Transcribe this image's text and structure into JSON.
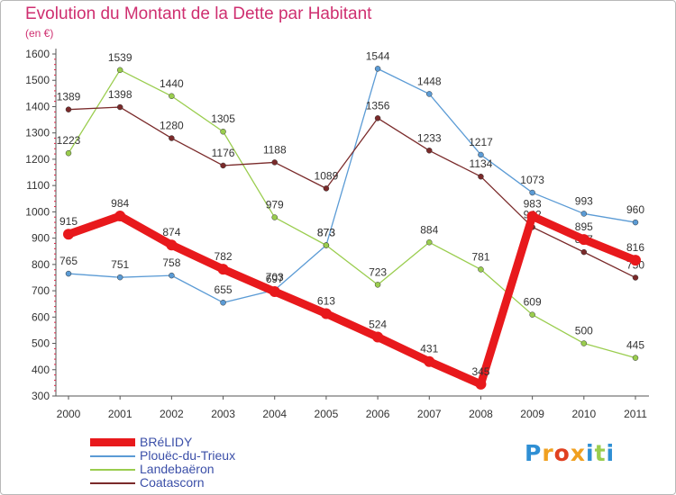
{
  "chart_data": {
    "type": "line",
    "title": "Evolution du Montant de la Dette par Habitant",
    "subtitle": "(en €)",
    "x": [
      "2000",
      "2001",
      "2002",
      "2003",
      "2004",
      "2005",
      "2006",
      "2007",
      "2008",
      "2009",
      "2010",
      "2011"
    ],
    "ylim": [
      300,
      1600
    ],
    "yticks": [
      300,
      400,
      500,
      600,
      700,
      800,
      900,
      1000,
      1100,
      1200,
      1300,
      1400,
      1500,
      1600
    ],
    "grid": false,
    "legend_position": "bottom-left",
    "series": [
      {
        "name": "BRéLIDY",
        "color": "#e8191c",
        "values": [
          915,
          984,
          874,
          782,
          697,
          613,
          524,
          431,
          345,
          983,
          895,
          816
        ],
        "labels": [
          "915",
          "984",
          "874",
          "782",
          "697",
          "613",
          "524",
          "431",
          "345",
          "983",
          "895",
          "816"
        ]
      },
      {
        "name": "Plouëc-du-Trieux",
        "color": "#5b9bd5",
        "values": [
          765,
          751,
          758,
          655,
          703,
          873,
          1544,
          1448,
          1217,
          1073,
          993,
          960
        ],
        "labels": [
          "765",
          "751",
          "758",
          "655",
          "703",
          "873",
          "1544",
          "1448",
          "1217",
          "1073",
          "993",
          "960"
        ]
      },
      {
        "name": "Landebaëron",
        "color": "#9acd4e",
        "values": [
          1223,
          1539,
          1440,
          1305,
          979,
          873,
          723,
          884,
          781,
          609,
          500,
          445
        ],
        "labels": [
          "1223",
          "1539",
          "1440",
          "1305",
          "979",
          "873",
          "723",
          "884",
          "781",
          "609",
          "500",
          "445"
        ]
      },
      {
        "name": "Coatascorn",
        "color": "#7a2a2a",
        "values": [
          1389,
          1398,
          1280,
          1176,
          1188,
          1089,
          1356,
          1233,
          1134,
          942,
          847,
          750
        ],
        "labels": [
          "1389",
          "1398",
          "1280",
          "1176",
          "1188",
          "1089",
          "1356",
          "1233",
          "1134",
          "942",
          "847",
          "750"
        ]
      }
    ]
  },
  "logo": {
    "letters": [
      {
        "ch": "P",
        "color": "#2f8fd4"
      },
      {
        "ch": "r",
        "color": "#f0a020"
      },
      {
        "ch": "o",
        "color": "#e04020"
      },
      {
        "ch": "x",
        "color": "#f0a020"
      },
      {
        "ch": "i",
        "color": "#2f8fd4"
      },
      {
        "ch": "t",
        "color": "#9acd4e"
      },
      {
        "ch": "i",
        "color": "#2f8fd4"
      }
    ]
  }
}
